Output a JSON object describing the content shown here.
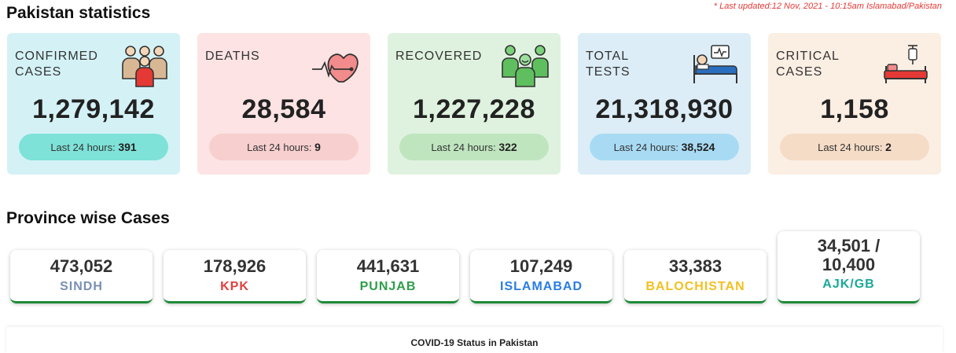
{
  "page": {
    "title": "Pakistan statistics",
    "last_updated": "* Last updated:12 Nov, 2021 - 10:15am Islamabad/Pakistan"
  },
  "stats": [
    {
      "label_line1": "CONFIRMED",
      "label_line2": "CASES",
      "value": "1,279,142",
      "pill_text": "Last 24 hours:",
      "pill_value": "391",
      "card_color": "#d4f2f6",
      "pill_color": "#7ee2d8",
      "icon": "people-group-icon"
    },
    {
      "label_line1": "DEATHS",
      "label_line2": "",
      "value": "28,584",
      "pill_text": "Last 24 hours:",
      "pill_value": "9",
      "card_color": "#fde3e3",
      "pill_color": "#f7cfcf",
      "icon": "heartbeat-icon"
    },
    {
      "label_line1": "RECOVERED",
      "label_line2": "",
      "value": "1,227,228",
      "pill_text": "Last 24 hours:",
      "pill_value": "322",
      "card_color": "#dff2df",
      "pill_color": "#bfe5bf",
      "icon": "recovered-people-icon"
    },
    {
      "label_line1": "TOTAL",
      "label_line2": "TESTS",
      "value": "21,318,930",
      "pill_text": "Last 24 hours:",
      "pill_value": "38,524",
      "card_color": "#dcedf7",
      "pill_color": "#a8dbf3",
      "icon": "hospital-bed-monitor-icon"
    },
    {
      "label_line1": "CRITICAL",
      "label_line2": "CASES",
      "value": "1,158",
      "pill_text": "Last 24 hours:",
      "pill_value": "2",
      "card_color": "#fbeee3",
      "pill_color": "#f5dcc6",
      "icon": "hospital-bed-iv-icon"
    }
  ],
  "provinces": {
    "title": "Province wise Cases",
    "items": [
      {
        "value": "473,052",
        "name": "SINDH",
        "color": "#7a8fb3"
      },
      {
        "value": "178,926",
        "name": "KPK",
        "color": "#e04040"
      },
      {
        "value": "441,631",
        "name": "PUNJAB",
        "color": "#2e9e4a"
      },
      {
        "value": "107,249",
        "name": "ISLAMABAD",
        "color": "#2a7de1"
      },
      {
        "value": "33,383",
        "name": "BALOCHISTAN",
        "color": "#f3c020"
      },
      {
        "value_line1": "34,501 /",
        "value_line2": "10,400",
        "name": "AJK/GB",
        "color": "#1aa89a"
      }
    ]
  },
  "chart_panel": {
    "title": "COVID-19 Status in Pakistan"
  }
}
